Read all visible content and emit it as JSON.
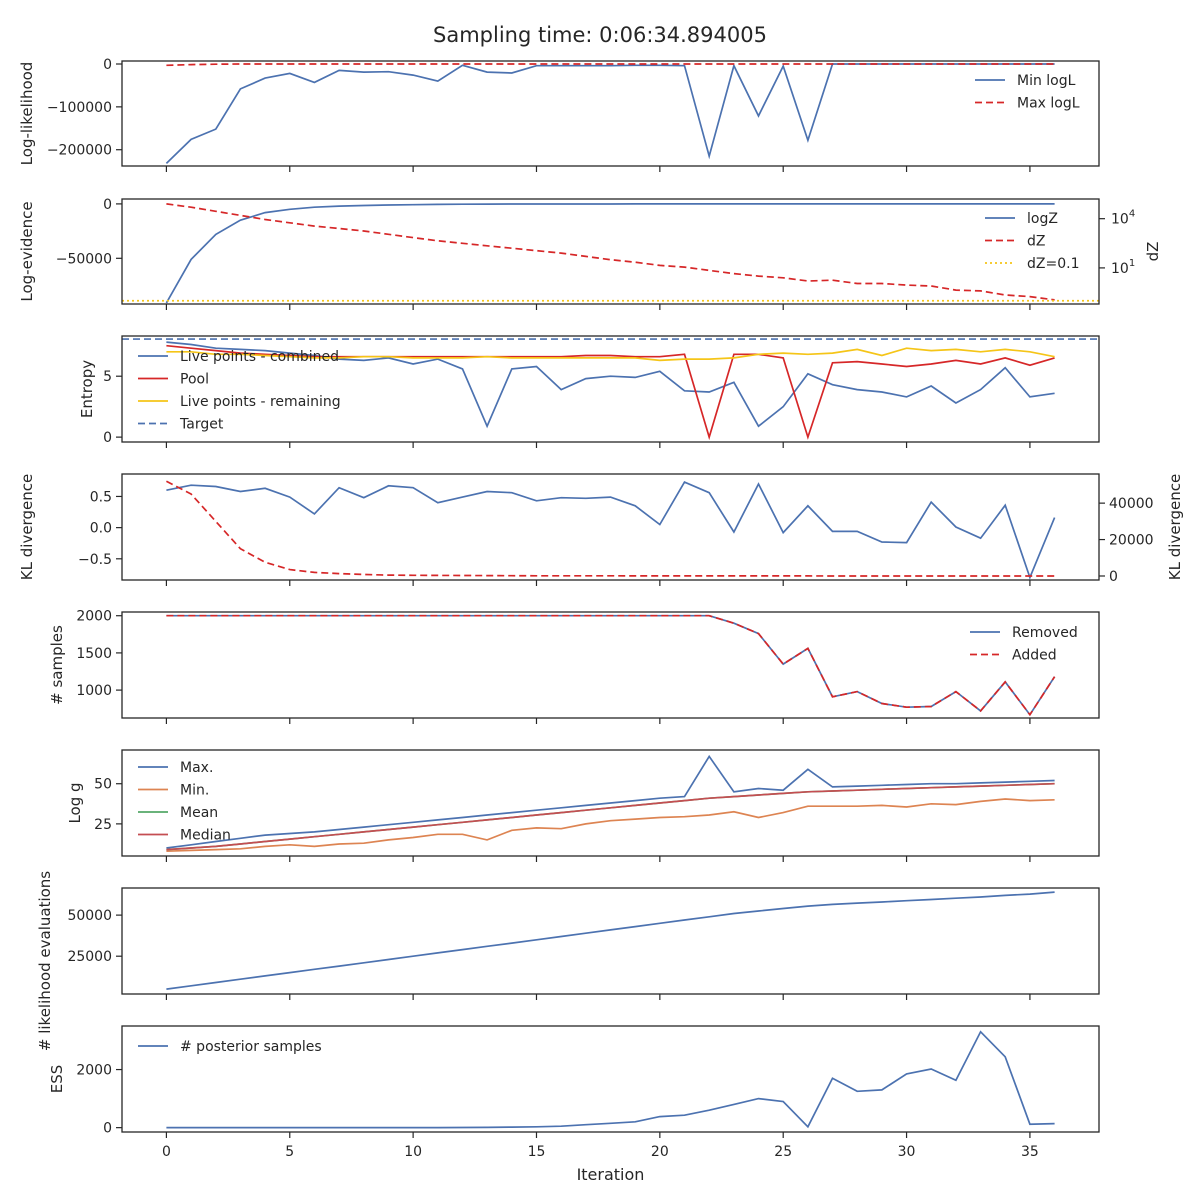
{
  "title": "Sampling time: 0:06:34.894005",
  "xlabel": "Iteration",
  "xlim": [
    -1.8,
    37.8
  ],
  "xticks": [
    0,
    5,
    10,
    15,
    20,
    25,
    30,
    35
  ],
  "colors": {
    "blue": "#4c72b0",
    "red": "#d62728",
    "yellow": "#f5c518",
    "orange": "#dd8452",
    "green": "#55a868",
    "darkred": "#c44e52",
    "navy": "#4c72b0"
  },
  "chart_data": [
    {
      "id": "loglikelihood",
      "type": "line",
      "ylabel": "Log-likelihood",
      "ylim": [
        -238000,
        7000
      ],
      "yticks": [
        0,
        -100000,
        -200000
      ],
      "ytick_labels": [
        "0",
        "−100000",
        "−200000"
      ],
      "legend": "top-right",
      "series": [
        {
          "name": "Min logL",
          "color": "blue",
          "dash": "solid",
          "axis": "left",
          "values": [
            -232000,
            -176000,
            -152000,
            -58000,
            -33000,
            -22000,
            -43000,
            -15000,
            -19000,
            -18000,
            -26000,
            -40000,
            -3000,
            -19000,
            -21000,
            -4000,
            -4000,
            -4000,
            -4000,
            -3000,
            -3000,
            -4000,
            -215000,
            -4000,
            -121000,
            -5000,
            -178000,
            0,
            0,
            0,
            0,
            0,
            0,
            0,
            0,
            0,
            0
          ]
        },
        {
          "name": "Max logL",
          "color": "red",
          "dash": "dashed",
          "axis": "left",
          "values": [
            -3000,
            -1500,
            -500,
            0,
            0,
            0,
            0,
            0,
            0,
            0,
            0,
            0,
            0,
            0,
            0,
            0,
            0,
            0,
            0,
            0,
            0,
            0,
            0,
            0,
            0,
            0,
            0,
            0,
            0,
            0,
            0,
            0,
            0,
            0,
            0,
            0,
            0
          ]
        }
      ]
    },
    {
      "id": "logevidence",
      "type": "line",
      "ylabel": "Log-evidence",
      "ylabel_right": "dZ",
      "ylim": [
        -92000,
        4500
      ],
      "yticks": [
        0,
        -50000
      ],
      "ytick_labels": [
        "0",
        "−50000"
      ],
      "ylim_right_log10": [
        -1.2,
        5.2
      ],
      "yticks_right_log10": [
        4,
        1
      ],
      "ytick_labels_right": [
        "10",
        "10"
      ],
      "ytick_sup_right": [
        "4",
        "1"
      ],
      "legend": "top-right",
      "series": [
        {
          "name": "logZ",
          "color": "blue",
          "dash": "solid",
          "axis": "left",
          "values": [
            -91000,
            -51000,
            -28000,
            -15000,
            -8000,
            -5000,
            -3000,
            -2000,
            -1500,
            -1000,
            -700,
            -500,
            -300,
            -200,
            -100,
            -100,
            -80,
            -60,
            -50,
            -40,
            -30,
            -20,
            -20,
            -10,
            -10,
            -10,
            -10,
            -10,
            -10,
            -10,
            -10,
            -10,
            -10,
            -10,
            -10,
            -10,
            -10
          ]
        },
        {
          "name": "dZ",
          "color": "red",
          "dash": "dashed",
          "axis": "right",
          "values_log10": [
            4.9,
            4.7,
            4.45,
            4.2,
            3.95,
            3.75,
            3.55,
            3.4,
            3.25,
            3.05,
            2.85,
            2.65,
            2.5,
            2.35,
            2.2,
            2.05,
            1.9,
            1.7,
            1.5,
            1.35,
            1.15,
            1.05,
            0.85,
            0.65,
            0.5,
            0.4,
            0.2,
            0.25,
            0.05,
            0.05,
            -0.05,
            -0.1,
            -0.35,
            -0.4,
            -0.65,
            -0.75,
            -0.95
          ]
        },
        {
          "name": "dZ=0.1",
          "color": "yellow",
          "dash": "dotted",
          "axis": "right",
          "constant_log10": -1.0
        }
      ]
    },
    {
      "id": "entropy",
      "type": "line",
      "ylabel": "Entropy",
      "ylim": [
        -0.4,
        8.3
      ],
      "yticks": [
        5,
        0
      ],
      "ytick_labels": [
        "5",
        "0"
      ],
      "legend": "top-left",
      "series": [
        {
          "name": "Live points - combined",
          "color": "blue",
          "dash": "solid",
          "axis": "left",
          "values": [
            7.8,
            7.6,
            7.3,
            7.2,
            7.1,
            6.9,
            6.7,
            6.4,
            6.3,
            6.5,
            6.0,
            6.4,
            5.6,
            0.9,
            5.6,
            5.8,
            3.9,
            4.8,
            5.0,
            4.9,
            5.4,
            3.8,
            3.7,
            4.5,
            0.9,
            2.5,
            5.2,
            4.3,
            3.9,
            3.7,
            3.3,
            4.2,
            2.8,
            3.9,
            5.7,
            3.3,
            3.6
          ]
        },
        {
          "name": "Pool",
          "color": "red",
          "dash": "solid",
          "axis": "left",
          "values": [
            7.5,
            7.3,
            7.1,
            6.9,
            6.8,
            6.7,
            6.6,
            6.6,
            6.6,
            6.6,
            6.6,
            6.6,
            6.6,
            6.6,
            6.6,
            6.6,
            6.6,
            6.7,
            6.7,
            6.6,
            6.6,
            6.8,
            0.0,
            6.8,
            6.8,
            6.5,
            0.0,
            6.1,
            6.2,
            6.0,
            5.8,
            6.0,
            6.3,
            6.0,
            6.5,
            5.9,
            6.5
          ]
        },
        {
          "name": "Live points - remaining",
          "color": "yellow",
          "dash": "solid",
          "axis": "left",
          "values": [
            7.0,
            7.0,
            6.8,
            6.8,
            6.7,
            6.6,
            6.5,
            6.5,
            6.6,
            6.6,
            6.5,
            6.5,
            6.5,
            6.6,
            6.5,
            6.5,
            6.5,
            6.5,
            6.5,
            6.5,
            6.3,
            6.4,
            6.4,
            6.5,
            6.8,
            6.9,
            6.8,
            6.9,
            7.2,
            6.7,
            7.3,
            7.1,
            7.2,
            7.0,
            7.2,
            7.0,
            6.6
          ]
        },
        {
          "name": "Target",
          "color": "navy",
          "dash": "dashed",
          "axis": "left",
          "constant": 8.05
        }
      ]
    },
    {
      "id": "kl",
      "type": "line",
      "ylabel": "KL divergence",
      "ylabel_right": "KL divergence",
      "ylim": [
        -0.84,
        0.86
      ],
      "yticks": [
        0.5,
        0.0,
        -0.5
      ],
      "ytick_labels": [
        "0.5",
        "0.0",
        "−0.5"
      ],
      "ylim_right": [
        -2200,
        56000
      ],
      "yticks_right": [
        40000,
        20000,
        0
      ],
      "ytick_labels_right": [
        "40000",
        "20000",
        "0"
      ],
      "series": [
        {
          "name": "",
          "color": "blue",
          "dash": "solid",
          "axis": "left",
          "values": [
            0.6,
            0.68,
            0.66,
            0.58,
            0.63,
            0.49,
            0.22,
            0.64,
            0.48,
            0.67,
            0.64,
            0.4,
            0.49,
            0.58,
            0.56,
            0.43,
            0.48,
            0.47,
            0.49,
            0.35,
            0.05,
            0.73,
            0.56,
            -0.07,
            0.7,
            -0.08,
            0.35,
            -0.06,
            -0.06,
            -0.23,
            -0.24,
            0.41,
            0.01,
            -0.17,
            0.36,
            -0.8,
            0.16
          ]
        },
        {
          "name": "",
          "color": "red",
          "dash": "dashed",
          "axis": "right",
          "values": [
            52000,
            45000,
            30000,
            15000,
            7500,
            3500,
            2000,
            1300,
            800,
            500,
            400,
            300,
            250,
            200,
            150,
            120,
            100,
            90,
            80,
            70,
            60,
            50,
            40,
            40,
            30,
            30,
            30,
            20,
            20,
            20,
            20,
            20,
            20,
            20,
            20,
            20,
            20
          ]
        }
      ]
    },
    {
      "id": "samples",
      "type": "line",
      "ylabel": "# samples",
      "ylim": [
        625,
        2050
      ],
      "yticks": [
        2000,
        1500,
        1000
      ],
      "ytick_labels": [
        "2000",
        "1500",
        "1000"
      ],
      "legend": "top-right",
      "series": [
        {
          "name": "Removed",
          "color": "blue",
          "dash": "solid",
          "axis": "left",
          "values": [
            2000,
            2000,
            2000,
            2000,
            2000,
            2000,
            2000,
            2000,
            2000,
            2000,
            2000,
            2000,
            2000,
            2000,
            2000,
            2000,
            2000,
            2000,
            2000,
            2000,
            2000,
            2000,
            2000,
            1900,
            1760,
            1350,
            1560,
            910,
            980,
            820,
            770,
            780,
            980,
            720,
            1110,
            670,
            1180
          ]
        },
        {
          "name": "Added",
          "color": "red",
          "dash": "dashed",
          "axis": "left",
          "values": [
            2000,
            2000,
            2000,
            2000,
            2000,
            2000,
            2000,
            2000,
            2000,
            2000,
            2000,
            2000,
            2000,
            2000,
            2000,
            2000,
            2000,
            2000,
            2000,
            2000,
            2000,
            2000,
            2000,
            1900,
            1760,
            1350,
            1560,
            910,
            980,
            820,
            770,
            780,
            980,
            720,
            1110,
            670,
            1180
          ]
        }
      ]
    },
    {
      "id": "logg",
      "type": "line",
      "ylabel": "Log g",
      "ylim": [
        5,
        71
      ],
      "yticks": [
        50,
        25
      ],
      "ytick_labels": [
        "50",
        "25"
      ],
      "legend": "top-left",
      "series": [
        {
          "name": "Max.",
          "color": "blue",
          "dash": "solid",
          "axis": "left",
          "values": [
            10,
            12,
            14,
            16,
            18,
            19,
            20,
            21.5,
            23,
            24.5,
            26,
            27.5,
            29,
            30.5,
            32,
            33.5,
            35,
            36.5,
            38,
            39.5,
            41,
            42,
            67,
            45,
            47,
            46,
            59,
            48,
            48.5,
            49,
            49.5,
            50,
            50,
            50.5,
            51,
            51.5,
            52
          ]
        },
        {
          "name": "Min.",
          "color": "orange",
          "dash": "solid",
          "axis": "left",
          "values": [
            8,
            8.5,
            9,
            9.5,
            11,
            12,
            11,
            12.5,
            13,
            15,
            16.5,
            18.5,
            18.5,
            15,
            21,
            22.5,
            22,
            25,
            27,
            28,
            29,
            29.5,
            30.5,
            32.5,
            29,
            32,
            36,
            36,
            36,
            36.5,
            35.5,
            37.5,
            37,
            39,
            40.5,
            39.5,
            40
          ]
        },
        {
          "name": "Mean",
          "color": "green",
          "dash": "solid",
          "axis": "left",
          "values": [
            9,
            10,
            11,
            12.5,
            14,
            15.5,
            17,
            18.5,
            20,
            21.5,
            23,
            24.5,
            26,
            27.5,
            29,
            30.5,
            32,
            33.5,
            35,
            36.5,
            38,
            39.5,
            41,
            42,
            43,
            44,
            45,
            45.5,
            46,
            46.5,
            47,
            47.5,
            48,
            48.5,
            49,
            49.5,
            50
          ]
        },
        {
          "name": "Median",
          "color": "darkred",
          "dash": "solid",
          "axis": "left",
          "values": [
            9,
            10,
            11,
            12.5,
            14,
            15.5,
            17,
            18.5,
            20,
            21.5,
            23,
            24.5,
            26,
            27.5,
            29,
            30.5,
            32,
            33.5,
            35,
            36.5,
            38,
            39.5,
            41,
            42,
            43,
            44,
            45,
            45.5,
            46,
            46.5,
            47,
            47.5,
            48,
            48.5,
            49,
            49.5,
            50
          ]
        }
      ]
    },
    {
      "id": "evaluations",
      "type": "line",
      "ylabel": "# likelihood evaluations",
      "ylim": [
        2000,
        66500
      ],
      "yticks": [
        50000,
        25000
      ],
      "ytick_labels": [
        "50000",
        "25000"
      ],
      "series": [
        {
          "name": "",
          "color": "blue",
          "dash": "solid",
          "axis": "left",
          "values": [
            5000,
            7000,
            9000,
            11000,
            13000,
            15000,
            17000,
            19000,
            21000,
            23000,
            25000,
            27000,
            29000,
            31000,
            33000,
            35000,
            37000,
            39000,
            41000,
            43000,
            45000,
            47000,
            49000,
            51000,
            52500,
            54000,
            55500,
            56500,
            57300,
            58000,
            58800,
            59500,
            60300,
            61000,
            62000,
            62800,
            64000
          ]
        }
      ]
    },
    {
      "id": "ess",
      "type": "line",
      "ylabel": "ESS",
      "ylim": [
        -150,
        3500
      ],
      "yticks": [
        2000,
        0
      ],
      "ytick_labels": [
        "2000",
        "0"
      ],
      "legend": "top-left",
      "series": [
        {
          "name": "# posterior samples",
          "color": "blue",
          "dash": "solid",
          "axis": "left",
          "values": [
            0,
            0,
            0,
            0,
            0,
            0,
            0,
            0,
            0,
            0,
            2,
            3,
            5,
            10,
            20,
            30,
            50,
            100,
            150,
            200,
            380,
            430,
            600,
            800,
            1000,
            900,
            30,
            1700,
            1250,
            1300,
            1850,
            2020,
            1630,
            3300,
            2440,
            120,
            140
          ]
        }
      ]
    }
  ]
}
